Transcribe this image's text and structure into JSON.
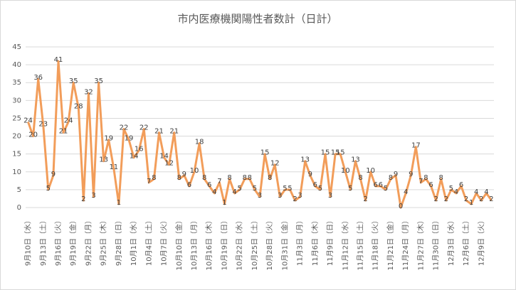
{
  "chart_data": {
    "type": "line",
    "title": "市内医療機関陽性者数計（日計）",
    "categories": [
      "9月10日（水）",
      null,
      null,
      "9月13日（土）",
      null,
      null,
      "9月16日（火）",
      null,
      null,
      "9月19日（金）",
      null,
      null,
      "9月22日（月）",
      null,
      null,
      "9月25日（木）",
      null,
      null,
      "9月28日（日）",
      null,
      null,
      "10月1日（水）",
      null,
      null,
      "10月4日（土）",
      null,
      null,
      "10月7日（火）",
      null,
      null,
      "10月10日（金）",
      null,
      null,
      "10月13日（月）",
      null,
      null,
      "10月16日（木）",
      null,
      null,
      "10月19日（日）",
      null,
      null,
      "10月22日（水）",
      null,
      null,
      "10月25日（土）",
      null,
      null,
      "10月28日（火）",
      null,
      null,
      "10月31日（金）",
      null,
      null,
      "11月3日（月）",
      null,
      null,
      "11月6日（木）",
      null,
      null,
      "11月9日（日）",
      null,
      null,
      "11月12日（水）",
      null,
      null,
      "11月15日（土）",
      null,
      null,
      "11月18日（火）",
      null,
      null,
      "11月21日（金）",
      null,
      null,
      "11月24日（月）",
      null,
      null,
      "11月27日（木）",
      null,
      null,
      "11月30日（日）",
      null,
      null,
      "12月3日（水）",
      null,
      null,
      "12月6日（土）",
      null,
      null,
      "12月9日（火）",
      null,
      null
    ],
    "values": [
      24,
      20,
      36,
      23,
      5,
      9,
      41,
      21,
      24,
      35,
      28,
      2,
      32,
      3,
      35,
      13,
      19,
      11,
      1,
      22,
      19,
      14,
      16,
      22,
      7,
      8,
      21,
      14,
      12,
      21,
      8,
      9,
      6,
      10,
      18,
      8,
      6,
      4,
      7,
      1,
      8,
      4,
      5,
      8,
      8,
      5,
      3,
      15,
      8,
      12,
      3,
      5,
      5,
      2,
      3,
      13,
      9,
      6,
      5,
      15,
      3,
      15,
      15,
      10,
      5,
      13,
      8,
      2,
      10,
      6,
      6,
      5,
      8,
      9,
      0,
      4,
      9,
      17,
      7,
      8,
      6,
      2,
      8,
      2,
      5,
      4,
      6,
      2,
      1,
      4,
      2,
      4,
      2
    ],
    "color": "#f29d5a",
    "ylim": [
      0,
      45
    ],
    "yticks": [
      0,
      5,
      10,
      15,
      20,
      25,
      30,
      35,
      40,
      45
    ],
    "grid": true,
    "data_labels": true
  }
}
